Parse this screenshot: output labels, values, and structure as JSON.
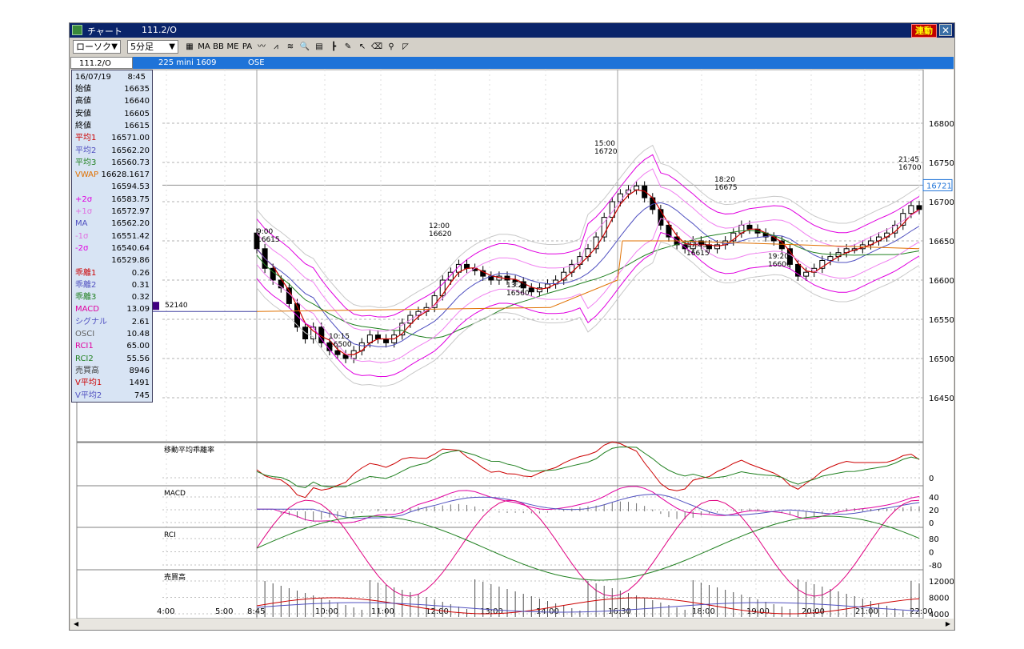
{
  "window": {
    "title": "チャート",
    "symbol_title": "111.2/O",
    "link_label": "連動",
    "close_glyph": "✕"
  },
  "toolbar": {
    "chart_type": "ローソク",
    "interval": "5分足",
    "tools": [
      {
        "name": "chart-settings-icon",
        "glyph": "▦"
      },
      {
        "name": "ma-icon",
        "glyph": "MA"
      },
      {
        "name": "bb-icon",
        "glyph": "BB"
      },
      {
        "name": "mae-icon",
        "glyph": "ME"
      },
      {
        "name": "pa-icon",
        "glyph": "PA"
      },
      {
        "name": "line-chart-icon",
        "glyph": "〰"
      },
      {
        "name": "compare-chart-icon",
        "glyph": "⩘"
      },
      {
        "name": "fibonacci-icon",
        "glyph": "≋"
      },
      {
        "name": "zoom-icon",
        "glyph": "🔍"
      },
      {
        "name": "trade-list-icon",
        "glyph": "▤"
      },
      {
        "name": "bar-settings-icon",
        "glyph": "┣"
      },
      {
        "name": "pen-icon",
        "glyph": "✎"
      },
      {
        "name": "cursor-icon",
        "glyph": "↖"
      },
      {
        "name": "eraser-icon",
        "glyph": "⌫"
      },
      {
        "name": "magnify-icon",
        "glyph": "⚲"
      },
      {
        "name": "trendline-icon",
        "glyph": "◸"
      }
    ]
  },
  "infobar": {
    "symbol": "111.2/O",
    "name": "225 mini 1609",
    "exchange": "OSE"
  },
  "datapanel": {
    "date": "16/07/19",
    "time": "8:45",
    "rows": [
      {
        "label": "始値",
        "value": "16635",
        "color": "#000000"
      },
      {
        "label": "高値",
        "value": "16640",
        "color": "#000000"
      },
      {
        "label": "安値",
        "value": "16605",
        "color": "#000000"
      },
      {
        "label": "終値",
        "value": "16615",
        "color": "#000000"
      },
      {
        "label": "平均1",
        "value": "16571.00",
        "color": "#cc0000"
      },
      {
        "label": "平均2",
        "value": "16562.20",
        "color": "#5050c0"
      },
      {
        "label": "平均3",
        "value": "16560.73",
        "color": "#208020"
      },
      {
        "label": "VWAP",
        "value": "16628.1617",
        "color": "#e07000"
      },
      {
        "label": "",
        "value": "16594.53",
        "color": "#000000"
      },
      {
        "label": "+2σ",
        "value": "16583.75",
        "color": "#e000e0"
      },
      {
        "label": "+1σ",
        "value": "16572.97",
        "color": "#e070e0"
      },
      {
        "label": "MA",
        "value": "16562.20",
        "color": "#5050c0"
      },
      {
        "label": "-1σ",
        "value": "16551.42",
        "color": "#e070e0"
      },
      {
        "label": "-2σ",
        "value": "16540.64",
        "color": "#e000e0"
      },
      {
        "label": "",
        "value": "16529.86",
        "color": "#000000"
      },
      {
        "label": "乖離1",
        "value": "0.26",
        "color": "#cc0000"
      },
      {
        "label": "乖離2",
        "value": "0.31",
        "color": "#5050c0"
      },
      {
        "label": "乖離3",
        "value": "0.32",
        "color": "#208020"
      },
      {
        "label": "MACD",
        "value": "13.09",
        "color": "#e000a0"
      },
      {
        "label": "シグナル",
        "value": "2.61",
        "color": "#5050c0"
      },
      {
        "label": "OSCI",
        "value": "10.48",
        "color": "#606060"
      },
      {
        "label": "RCI1",
        "value": "65.00",
        "color": "#e000a0"
      },
      {
        "label": "RCI2",
        "value": "55.56",
        "color": "#208020"
      },
      {
        "label": "売買高",
        "value": "8946",
        "color": "#404040"
      },
      {
        "label": "V平均1",
        "value": "1491",
        "color": "#cc0000"
      },
      {
        "label": "V平均2",
        "value": "745",
        "color": "#5050c0"
      }
    ]
  },
  "price_axis": {
    "ticks": [
      "16800",
      "16750",
      "16700",
      "16650",
      "16600",
      "16550",
      "16500",
      "16450"
    ],
    "current": "16721"
  },
  "time_axis": {
    "ticks": [
      "4:00",
      "5:00",
      "8:45",
      "10:00",
      "11:00",
      "12:00",
      "13:00",
      "14:00",
      "16:30",
      "18:00",
      "19:00",
      "20:00",
      "21:00",
      "22:00"
    ]
  },
  "annotations": [
    {
      "time": "9:00",
      "price": "16615"
    },
    {
      "time": "12:00",
      "price": "16620"
    },
    {
      "time": "13:25",
      "price": "16560"
    },
    {
      "time": "10:15",
      "price": "16500"
    },
    {
      "time": "15:00",
      "price": "16720"
    },
    {
      "time": "18:20",
      "price": "16675"
    },
    {
      "time": "17:45",
      "price": "16615"
    },
    {
      "time": "19:20",
      "price": "16600"
    },
    {
      "time": "21:45",
      "price": "16700"
    }
  ],
  "prev_volume_label": "52140",
  "panes": {
    "kairi": {
      "title": "移動平均乖離率",
      "ticks": [
        "0"
      ]
    },
    "macd": {
      "title": "MACD",
      "ticks": [
        "40",
        "20",
        "0"
      ]
    },
    "rci": {
      "title": "RCI",
      "ticks": [
        "80",
        "0",
        "-80"
      ]
    },
    "volume": {
      "title": "売買高",
      "ticks": [
        "12000",
        "8000",
        "4000"
      ]
    }
  },
  "colors": {
    "titlebar": "#0a246a",
    "infobar": "#1e73d8",
    "candle_up": "#ffffff",
    "candle_down": "#000000",
    "ma1": "#cc0000",
    "ma2": "#5050c0",
    "ma3": "#208020",
    "vwap": "#e07000",
    "bb2": "#e000e0",
    "bb1": "#f080f0",
    "bb3": "#c8c8c8",
    "macd": "#e000a0",
    "rci_short": "#e00080",
    "rci_long": "#208020"
  }
}
